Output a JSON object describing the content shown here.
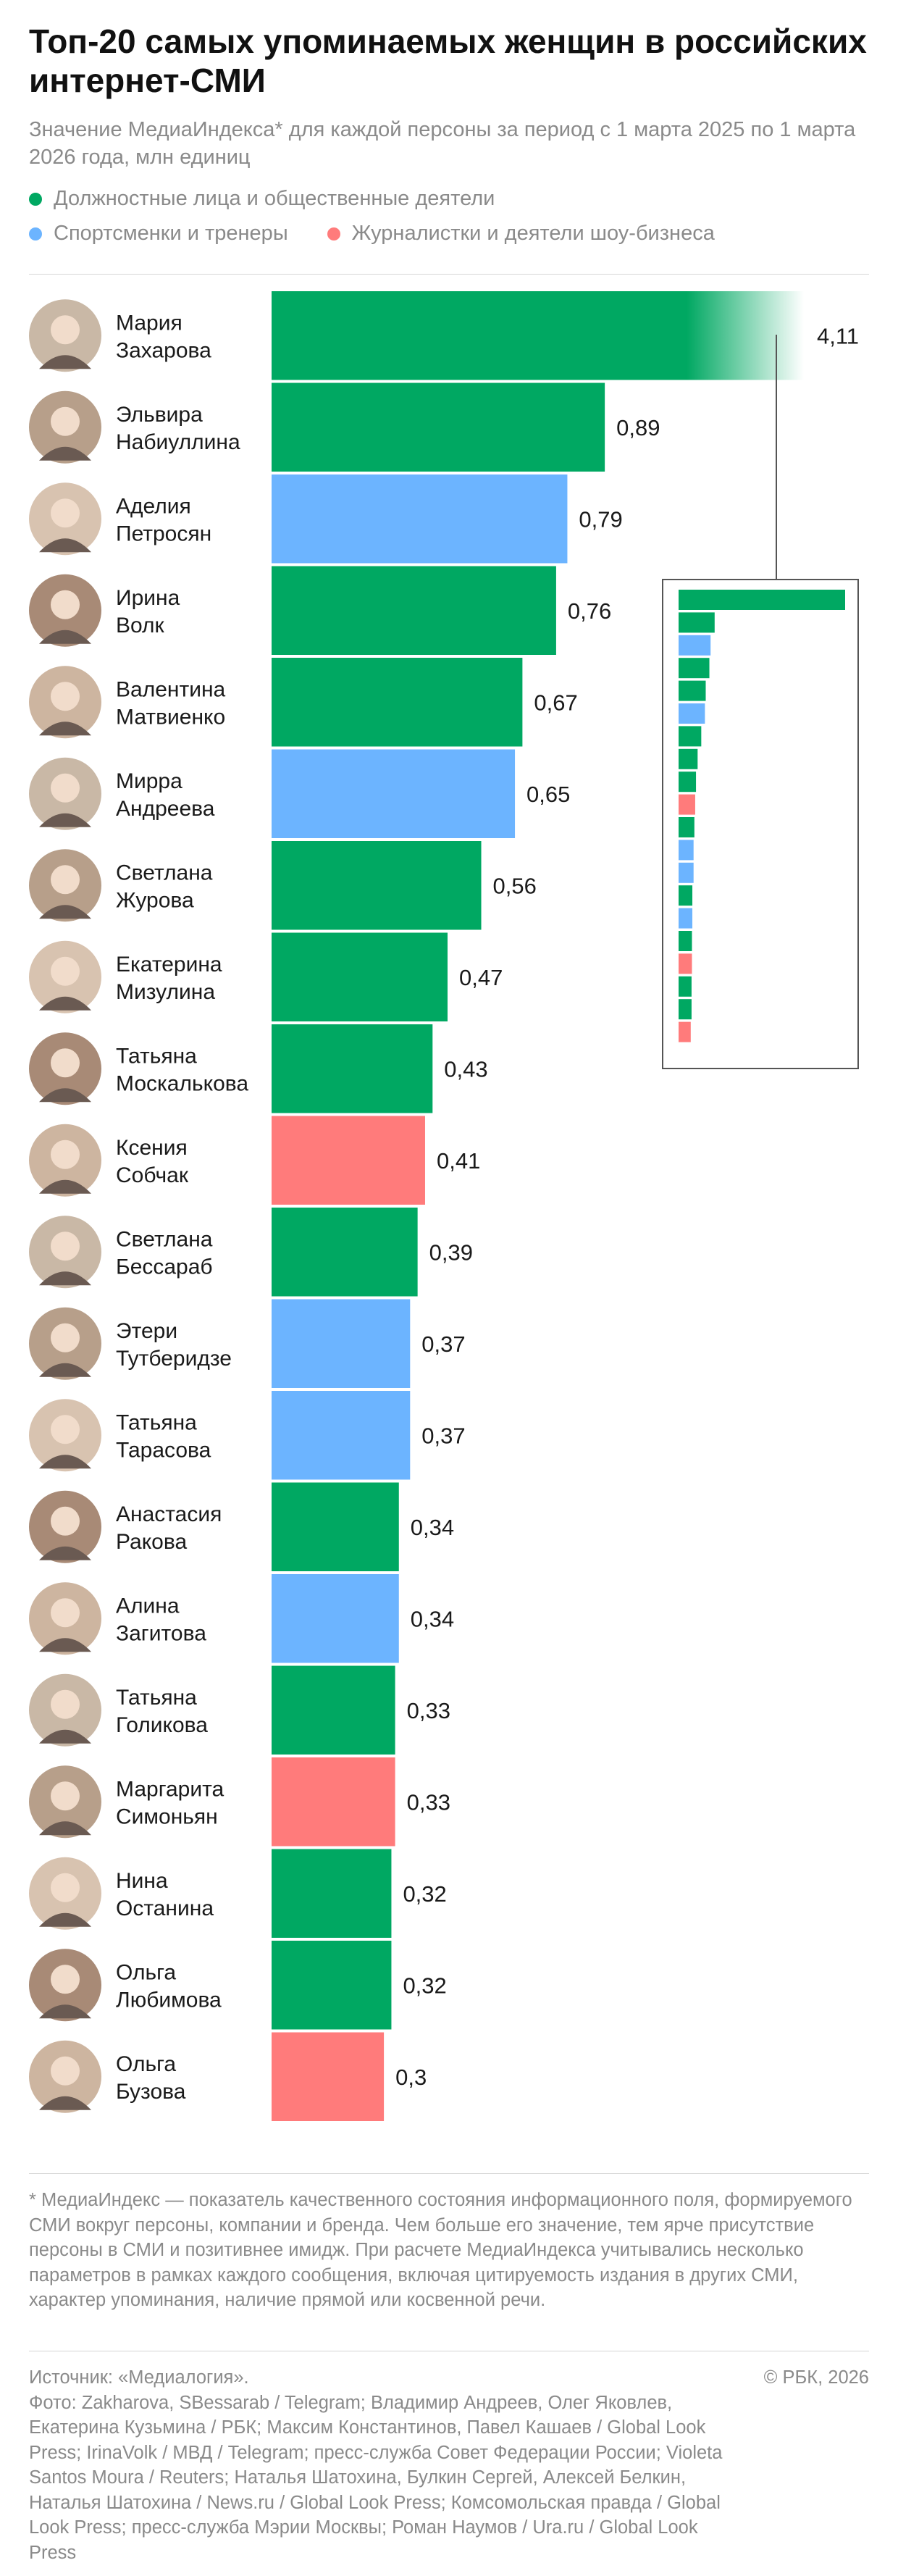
{
  "title": "Топ-20 самых упоминаемых женщин в российских интернет-СМИ",
  "subtitle": "Значение МедиаИндекса* для каждой персоны за период с 1 марта 2025 по 1 марта 2026 года, млн единиц",
  "legend": [
    {
      "label": "Должностные лица и общественные деятели",
      "color": "#00a862"
    },
    {
      "label": "Спортсменки и тренеры",
      "color": "#6cb4ff"
    },
    {
      "label": "Журналистки и деятели шоу-бизнеса",
      "color": "#ff7b7b"
    }
  ],
  "chart_data": {
    "type": "bar",
    "orientation": "horizontal",
    "categories": [
      "Мария Захарова",
      "Эльвира Набиуллина",
      "Аделия Петросян",
      "Ирина Волк",
      "Валентина Матвиенко",
      "Мирра Андреева",
      "Светлана Журова",
      "Екатерина Мизулина",
      "Татьяна Москалькова",
      "Ксения Собчак",
      "Светлана Бессараб",
      "Этери Тутберидзе",
      "Татьяна Тарасова",
      "Анастасия Ракова",
      "Алина Загитова",
      "Татьяна Голикова",
      "Маргарита Симоньян",
      "Нина Останина",
      "Ольга Любимова",
      "Ольга Бузова"
    ],
    "name_lines": [
      [
        "Мария",
        "Захарова"
      ],
      [
        "Эльвира",
        "Набиуллина"
      ],
      [
        "Аделия",
        "Петросян"
      ],
      [
        "Ирина",
        "Волк"
      ],
      [
        "Валентина",
        "Матвиенко"
      ],
      [
        "Мирра",
        "Андреева"
      ],
      [
        "Светлана",
        "Журова"
      ],
      [
        "Екатерина",
        "Мизулина"
      ],
      [
        "Татьяна",
        "Москалькова"
      ],
      [
        "Ксения",
        "Собчак"
      ],
      [
        "Светлана",
        "Бессараб"
      ],
      [
        "Этери",
        "Тутберидзе"
      ],
      [
        "Татьяна",
        "Тарасова"
      ],
      [
        "Анастасия",
        "Ракова"
      ],
      [
        "Алина",
        "Загитова"
      ],
      [
        "Татьяна",
        "Голикова"
      ],
      [
        "Маргарита",
        "Симоньян"
      ],
      [
        "Нина",
        "Останина"
      ],
      [
        "Ольга",
        "Любимова"
      ],
      [
        "Ольга",
        "Бузова"
      ]
    ],
    "values": [
      4.11,
      0.89,
      0.79,
      0.76,
      0.67,
      0.65,
      0.56,
      0.47,
      0.43,
      0.41,
      0.39,
      0.37,
      0.37,
      0.34,
      0.34,
      0.33,
      0.33,
      0.32,
      0.32,
      0.3
    ],
    "value_labels": [
      "4,11",
      "0,89",
      "0,79",
      "0,76",
      "0,67",
      "0,65",
      "0,56",
      "0,47",
      "0,43",
      "0,41",
      "0,39",
      "0,37",
      "0,37",
      "0,34",
      "0,34",
      "0,33",
      "0,33",
      "0,32",
      "0,32",
      "0,3"
    ],
    "groups": [
      0,
      0,
      1,
      0,
      0,
      1,
      0,
      0,
      0,
      2,
      0,
      1,
      1,
      0,
      1,
      0,
      2,
      0,
      0,
      2
    ],
    "truncated_bar": 0,
    "inset": "full-scale miniature at right"
  },
  "footnote": "* МедиаИндекс — показатель качественного состояния информационного поля, формируемого СМИ вокруг персоны, компании и бренда. Чем больше его значение, тем ярче присутствие персоны в СМИ и позитивнее имидж. При расчете МедиаИндекса учитывались несколько параметров в рамках каждого сообщения, включая цитируемость издания в других СМИ, характер упоминания, наличие прямой или косвенной речи.",
  "source": "Источник: «Медиалогия».",
  "photo_credits": "Фото: Zakharova, SBessarab / Telegram; Владимир Андреев, Олег Яковлев, Екатерина Кузьмина / РБК; Максим Константинов, Павел Кашаев / Global Look Press; IrinaVolk / МВД / Telegram; пресс-служба Совет Федерации России; Violeta Santos Moura / Reuters; Наталья Шатохина, Булкин Сергей, Алексей Белкин, Наталья Шатохина / News.ru / Global Look Press; Комсомольская правда / Global Look Press; пресс-служба Мэрии Москвы; Роман Наумов / Ura.ru / Global Look Press",
  "copyright": "© РБК, 2026"
}
